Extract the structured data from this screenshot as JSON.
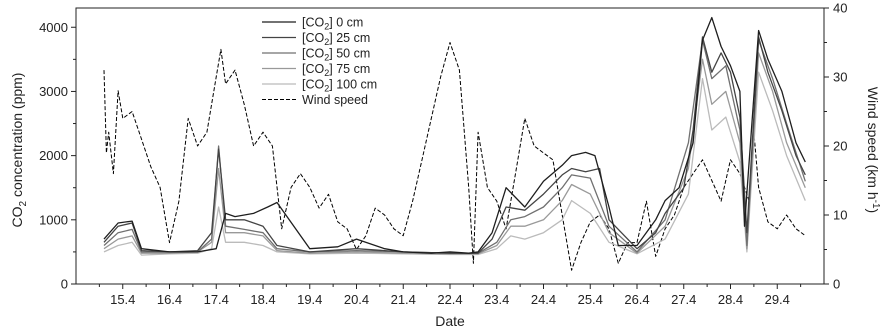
{
  "chart_data": {
    "type": "line",
    "title": "",
    "xlabel": "Date",
    "ylabel_left": {
      "main": "CO",
      "sub": "2",
      "rest": " concentration (ppm)"
    },
    "ylabel_right": {
      "main": "Wind speed (km h",
      "sup": "-1",
      "rest": ")"
    },
    "x_ticks": [
      "15.4",
      "16.4",
      "17.4",
      "18.4",
      "19.4",
      "20.4",
      "21.4",
      "22.4",
      "23.4",
      "24.4",
      "25.4",
      "26.4",
      "27.4",
      "28.4",
      "29.4"
    ],
    "xlim": [
      14.4,
      30.4
    ],
    "ylim_left": [
      0,
      4300
    ],
    "y_ticks_left": [
      0,
      1000,
      2000,
      3000,
      4000
    ],
    "ylim_right": [
      0,
      40
    ],
    "y_ticks_right": [
      0,
      10,
      20,
      30,
      40
    ],
    "legend_position": "top-center",
    "series": [
      {
        "name_parts": [
          "[CO",
          "2",
          "] 0 cm"
        ],
        "axis": "left",
        "color": "#1e1e1e",
        "x": [
          15.0,
          15.3,
          15.6,
          15.8,
          16.4,
          17.0,
          17.4,
          17.6,
          17.8,
          18.2,
          18.5,
          18.7,
          19.4,
          20.0,
          20.4,
          21.0,
          21.4,
          22.0,
          22.4,
          22.8,
          23.0,
          23.3,
          23.6,
          24.0,
          24.4,
          24.8,
          25.0,
          25.3,
          25.5,
          25.8,
          26.0,
          26.4,
          26.8,
          27.0,
          27.3,
          27.6,
          27.8,
          28.0,
          28.2,
          28.4,
          28.6,
          28.7,
          29.0,
          29.2,
          29.5,
          29.8,
          30.0
        ],
        "values": [
          700,
          950,
          980,
          550,
          500,
          500,
          550,
          1100,
          1050,
          1100,
          1200,
          1270,
          550,
          580,
          700,
          550,
          500,
          480,
          500,
          480,
          500,
          800,
          1500,
          1200,
          1600,
          1850,
          2000,
          2050,
          2000,
          1200,
          600,
          600,
          1000,
          1300,
          1500,
          2200,
          3800,
          4150,
          3700,
          3400,
          3000,
          900,
          3950,
          3500,
          3000,
          2200,
          1900
        ]
      },
      {
        "name_parts": [
          "[CO",
          "2",
          "] 25 cm"
        ],
        "axis": "left",
        "color": "#444444",
        "x": [
          15.0,
          15.3,
          15.6,
          15.8,
          16.4,
          17.0,
          17.3,
          17.45,
          17.6,
          18.0,
          18.4,
          18.7,
          19.4,
          20.4,
          21.4,
          22.4,
          23.0,
          23.3,
          23.6,
          24.0,
          24.4,
          24.8,
          25.0,
          25.3,
          25.6,
          25.8,
          26.4,
          26.8,
          27.0,
          27.4,
          27.6,
          27.8,
          28.0,
          28.2,
          28.4,
          28.6,
          28.75,
          29.0,
          29.2,
          29.5,
          29.8,
          30.0
        ],
        "values": [
          650,
          900,
          950,
          520,
          500,
          520,
          800,
          2100,
          1000,
          1000,
          900,
          600,
          500,
          550,
          500,
          480,
          480,
          700,
          1200,
          1150,
          1400,
          1700,
          1800,
          1750,
          1800,
          1000,
          550,
          800,
          1100,
          1500,
          2400,
          3850,
          3300,
          3600,
          3300,
          2600,
          800,
          3850,
          3300,
          2700,
          2000,
          1700
        ]
      },
      {
        "name_parts": [
          "[CO",
          "2",
          "] 50 cm"
        ],
        "axis": "left",
        "color": "#707070",
        "x": [
          15.0,
          15.3,
          15.6,
          15.8,
          16.4,
          17.0,
          17.3,
          17.45,
          17.6,
          18.0,
          18.4,
          18.7,
          19.4,
          20.4,
          21.4,
          22.4,
          23.0,
          23.4,
          23.7,
          24.0,
          24.4,
          24.8,
          25.0,
          25.4,
          25.8,
          26.4,
          27.0,
          27.5,
          27.8,
          28.0,
          28.3,
          28.6,
          28.75,
          29.0,
          29.3,
          29.6,
          30.0
        ],
        "values": [
          600,
          800,
          850,
          500,
          500,
          500,
          700,
          2150,
          900,
          850,
          800,
          550,
          500,
          520,
          500,
          480,
          480,
          650,
          1000,
          1050,
          1200,
          1500,
          1700,
          1650,
          900,
          500,
          1000,
          2200,
          3800,
          3200,
          3400,
          2400,
          600,
          3800,
          3200,
          2500,
          1600
        ]
      },
      {
        "name_parts": [
          "[CO",
          "2",
          "] 75 cm"
        ],
        "axis": "left",
        "color": "#999999",
        "x": [
          15.0,
          15.3,
          15.6,
          15.8,
          16.4,
          17.0,
          17.3,
          17.45,
          17.6,
          18.0,
          18.4,
          18.7,
          19.4,
          20.4,
          21.4,
          22.4,
          23.0,
          23.4,
          23.7,
          24.0,
          24.4,
          24.8,
          25.0,
          25.4,
          25.8,
          26.4,
          27.0,
          27.5,
          27.8,
          28.0,
          28.3,
          28.6,
          28.75,
          29.0,
          29.3,
          29.6,
          30.0
        ],
        "values": [
          550,
          700,
          750,
          480,
          480,
          500,
          650,
          1800,
          800,
          800,
          750,
          520,
          480,
          500,
          480,
          470,
          470,
          600,
          900,
          900,
          1000,
          1300,
          1550,
          1400,
          800,
          480,
          900,
          1800,
          3500,
          2800,
          3000,
          2200,
          550,
          3600,
          3000,
          2200,
          1500
        ]
      },
      {
        "name_parts": [
          "[CO",
          "2",
          "] 100 cm"
        ],
        "axis": "left",
        "color": "#bbbbbb",
        "x": [
          15.0,
          15.3,
          15.6,
          15.8,
          16.4,
          17.0,
          17.3,
          17.45,
          17.6,
          18.0,
          18.4,
          18.7,
          19.4,
          20.4,
          21.4,
          22.4,
          23.0,
          23.4,
          23.7,
          24.0,
          24.4,
          24.8,
          25.0,
          25.4,
          25.8,
          26.4,
          27.0,
          27.5,
          27.8,
          28.0,
          28.3,
          28.6,
          28.75,
          29.0,
          29.3,
          29.6,
          30.0
        ],
        "values": [
          500,
          600,
          650,
          450,
          470,
          480,
          550,
          1200,
          650,
          650,
          600,
          500,
          470,
          480,
          470,
          460,
          460,
          550,
          750,
          700,
          800,
          1000,
          1300,
          1100,
          650,
          470,
          700,
          1400,
          3200,
          2400,
          2600,
          1900,
          500,
          3300,
          2700,
          2000,
          1300
        ]
      },
      {
        "name_parts": [
          "Wind speed",
          "",
          ""
        ],
        "axis": "right",
        "color": "#000000",
        "dashed": true,
        "x": [
          15.0,
          15.05,
          15.1,
          15.2,
          15.3,
          15.4,
          15.6,
          15.8,
          16.0,
          16.2,
          16.4,
          16.6,
          16.8,
          17.0,
          17.2,
          17.4,
          17.5,
          17.6,
          17.8,
          18.0,
          18.2,
          18.4,
          18.6,
          18.8,
          19.0,
          19.2,
          19.4,
          19.6,
          19.8,
          20.0,
          20.2,
          20.4,
          20.6,
          20.8,
          21.0,
          21.2,
          21.4,
          21.6,
          21.8,
          22.0,
          22.2,
          22.4,
          22.6,
          22.8,
          22.9,
          23.0,
          23.2,
          23.4,
          23.6,
          23.8,
          24.0,
          24.2,
          24.4,
          24.6,
          24.8,
          25.0,
          25.2,
          25.4,
          25.6,
          25.8,
          26.0,
          26.2,
          26.4,
          26.6,
          26.8,
          27.0,
          27.2,
          27.4,
          27.6,
          27.8,
          28.0,
          28.2,
          28.4,
          28.6,
          28.8,
          28.9,
          29.0,
          29.2,
          29.4,
          29.6,
          29.8,
          30.0
        ],
        "values": [
          31,
          19,
          22,
          16,
          28,
          24,
          25,
          21,
          17,
          14,
          6,
          12,
          24,
          20,
          22,
          30,
          34,
          29,
          31,
          26,
          20,
          22,
          20,
          8,
          14,
          16,
          14,
          11,
          13,
          9,
          8,
          5,
          7,
          11,
          10,
          8,
          7,
          12,
          18,
          24,
          30,
          35,
          31,
          14,
          3,
          22,
          14,
          12,
          8,
          16,
          24,
          20,
          19,
          18,
          10,
          2,
          6,
          9,
          10,
          8,
          3,
          6,
          6,
          12,
          4,
          8,
          10,
          14,
          16,
          18,
          15,
          12,
          18,
          16,
          12,
          22,
          14,
          9,
          8,
          10,
          8,
          7
        ]
      }
    ]
  }
}
